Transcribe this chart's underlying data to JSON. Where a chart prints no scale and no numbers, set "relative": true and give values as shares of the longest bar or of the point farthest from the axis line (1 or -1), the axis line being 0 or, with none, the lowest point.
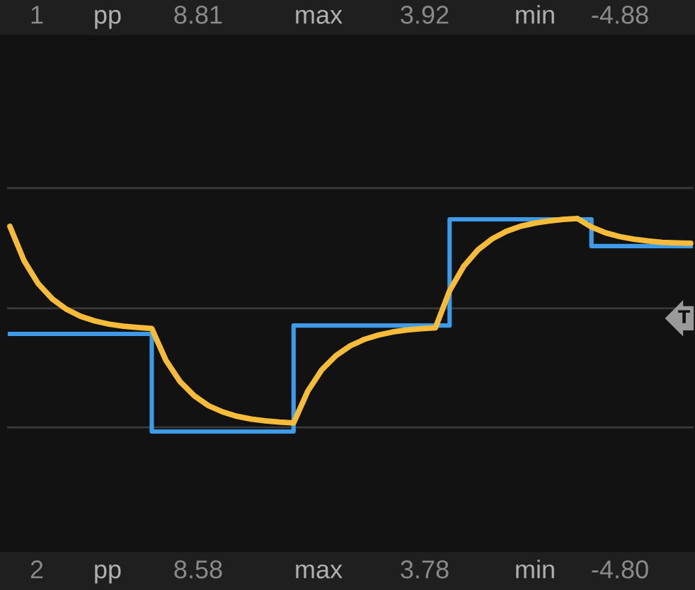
{
  "chart_data": {
    "type": "line",
    "relative": true,
    "ref_lines": [
      {
        "axis": "y",
        "value": 0.977,
        "color": "#3a3a3a"
      },
      {
        "axis": "y",
        "value": -0.966,
        "color": "#3a3a3a"
      }
    ],
    "categories": [
      null,
      null,
      null,
      null,
      null,
      null,
      null,
      null,
      null,
      null,
      null,
      null,
      null,
      null,
      null,
      null,
      null,
      null,
      null,
      null,
      null,
      null,
      null,
      null,
      null,
      null,
      null,
      null,
      null,
      null,
      null,
      null,
      null,
      null,
      null,
      null,
      null,
      null,
      null,
      null,
      null,
      null,
      null,
      null,
      null,
      null,
      null,
      null,
      null
    ],
    "series": [
      {
        "type": "step",
        "color": "#3d9be9",
        "values": [
          -0.207,
          -0.207,
          -0.207,
          -0.207,
          -0.207,
          -0.207,
          -0.207,
          -0.207,
          -0.207,
          -0.207,
          -1,
          -1,
          -1,
          -1,
          -1,
          -1,
          -1,
          -1,
          -1,
          -1,
          -0.139,
          -0.139,
          -0.139,
          -0.139,
          -0.139,
          -0.139,
          -0.139,
          -0.139,
          -0.139,
          -0.139,
          -0.139,
          0.724,
          0.724,
          0.724,
          0.724,
          0.724,
          0.724,
          0.724,
          0.724,
          0.724,
          0.724,
          0.506,
          0.506,
          0.506,
          0.506,
          0.506,
          0.506,
          0.506,
          0.506
        ]
      },
      {
        "color": "#f7bb3a",
        "values": [
          0.667,
          0.387,
          0.2,
          0.076,
          -0.008,
          -0.065,
          -0.102,
          -0.128,
          -0.144,
          -0.154,
          -0.163,
          -0.422,
          -0.595,
          -0.71,
          -0.79,
          -0.841,
          -0.876,
          -0.899,
          -0.913,
          -0.923,
          -0.93,
          -0.672,
          -0.497,
          -0.382,
          -0.303,
          -0.251,
          -0.216,
          -0.191,
          -0.175,
          -0.165,
          -0.158,
          0.144,
          0.343,
          0.476,
          0.565,
          0.626,
          0.667,
          0.693,
          0.71,
          0.723,
          0.731,
          0.661,
          0.614,
          0.583,
          0.562,
          0.548,
          0.537,
          0.532,
          0.529
        ]
      }
    ],
    "annotations": [
      "1",
      "pp",
      "8.81",
      "max",
      "3.92",
      "min",
      "-4.88",
      "2",
      "pp",
      "8.58",
      "max",
      "3.78",
      "min",
      "-4.80",
      "T"
    ]
  }
}
